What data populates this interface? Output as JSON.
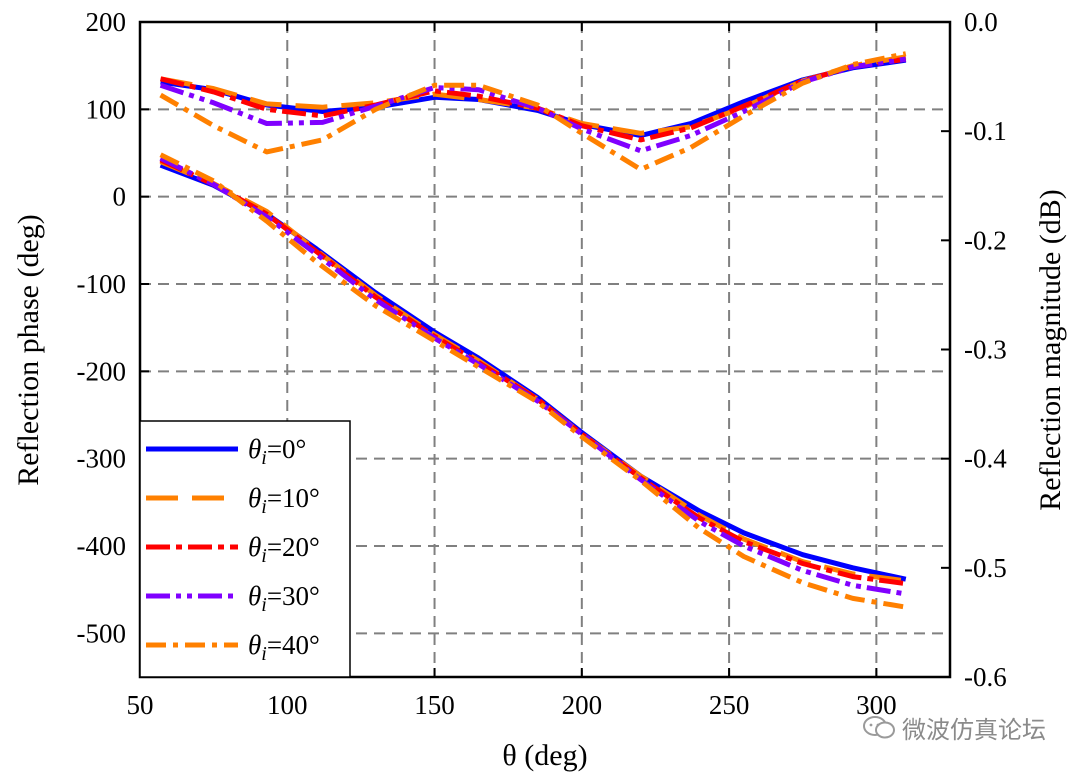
{
  "chart_data": {
    "type": "line",
    "xlabel": "θ (deg)",
    "ylabel_left": "Reflection phase (deg)",
    "ylabel_right": "Reflection magnitude (dB)",
    "xlim": [
      50,
      325
    ],
    "ylim_left": [
      -550,
      200
    ],
    "ylim_right": [
      -0.6,
      0.0
    ],
    "x_ticks": [
      50,
      100,
      150,
      200,
      250,
      300
    ],
    "y_ticks_left": [
      200,
      100,
      0,
      -100,
      -200,
      -300,
      -400,
      -500
    ],
    "y_ticks_right": [
      0.0,
      -0.1,
      -0.2,
      -0.3,
      -0.4,
      -0.5,
      -0.6
    ],
    "y_tick_labels_right": [
      "0.0",
      "-0.1",
      "-0.2",
      "-0.3",
      "-0.4",
      "-0.5",
      "-0.6"
    ],
    "grid": true,
    "legend_position": "bottom-left",
    "series": [
      {
        "name": "θi=0°",
        "name_pre": "θ",
        "name_sub": "i",
        "name_post": "=0°",
        "color": "#0000ff",
        "dash": "solid",
        "width": 5,
        "phase_x": [
          57,
          75,
          93,
          110,
          130,
          150,
          165,
          185,
          200,
          220,
          240,
          255,
          275,
          292,
          310
        ],
        "phase_y": [
          36,
          13,
          -20,
          -60,
          -110,
          -155,
          -185,
          -230,
          -270,
          -320,
          -360,
          -385,
          -410,
          -425,
          -438
        ],
        "mag_x": [
          57,
          75,
          93,
          112,
          130,
          150,
          165,
          185,
          200,
          220,
          237,
          255,
          275,
          292,
          310
        ],
        "mag_y": [
          -0.055,
          -0.062,
          -0.076,
          -0.082,
          -0.078,
          -0.069,
          -0.071,
          -0.081,
          -0.094,
          -0.104,
          -0.093,
          -0.073,
          -0.053,
          -0.042,
          -0.035
        ]
      },
      {
        "name": "θi=10°",
        "name_pre": "θ",
        "name_sub": "i",
        "name_post": "=10°",
        "color": "#ff8000",
        "dash": "32 14",
        "width": 5,
        "phase_x": [
          57,
          75,
          93,
          110,
          130,
          150,
          165,
          185,
          200,
          220,
          240,
          255,
          275,
          292,
          310
        ],
        "phase_y": [
          40,
          15,
          -17,
          -62,
          -113,
          -158,
          -188,
          -232,
          -272,
          -320,
          -365,
          -392,
          -418,
          -432,
          -440
        ],
        "mag_x": [
          57,
          75,
          93,
          112,
          130,
          150,
          165,
          185,
          200,
          220,
          237,
          255,
          275,
          292,
          310
        ],
        "mag_y": [
          -0.052,
          -0.061,
          -0.075,
          -0.078,
          -0.074,
          -0.066,
          -0.071,
          -0.079,
          -0.093,
          -0.102,
          -0.096,
          -0.078,
          -0.054,
          -0.04,
          -0.032
        ]
      },
      {
        "name": "θi=20°",
        "name_pre": "θ",
        "name_sub": "i",
        "name_post": "=20°",
        "color": "#ff0000",
        "dash": "24 6 6 6",
        "width": 5,
        "phase_x": [
          57,
          75,
          93,
          110,
          130,
          150,
          165,
          185,
          200,
          220,
          240,
          255,
          275,
          292,
          310
        ],
        "phase_y": [
          42,
          14,
          -20,
          -63,
          -115,
          -160,
          -190,
          -232,
          -272,
          -322,
          -368,
          -395,
          -420,
          -435,
          -443
        ],
        "mag_x": [
          57,
          75,
          93,
          112,
          130,
          150,
          165,
          185,
          200,
          220,
          237,
          255,
          275,
          292,
          310
        ],
        "mag_y": [
          -0.052,
          -0.064,
          -0.08,
          -0.086,
          -0.076,
          -0.063,
          -0.068,
          -0.079,
          -0.095,
          -0.108,
          -0.097,
          -0.077,
          -0.054,
          -0.041,
          -0.034
        ]
      },
      {
        "name": "θi=30°",
        "name_pre": "θ",
        "name_sub": "i",
        "name_post": "=30°",
        "color": "#8000ff",
        "dash": "24 6 5 6 5 6",
        "width": 5,
        "phase_x": [
          57,
          75,
          93,
          110,
          130,
          150,
          165,
          185,
          200,
          220,
          240,
          255,
          275,
          292,
          310
        ],
        "phase_y": [
          44,
          14,
          -23,
          -66,
          -118,
          -162,
          -192,
          -234,
          -272,
          -324,
          -372,
          -400,
          -428,
          -445,
          -455
        ],
        "mag_x": [
          57,
          75,
          93,
          112,
          130,
          150,
          165,
          185,
          200,
          220,
          237,
          255,
          275,
          292,
          310
        ],
        "mag_y": [
          -0.058,
          -0.074,
          -0.093,
          -0.092,
          -0.077,
          -0.06,
          -0.062,
          -0.079,
          -0.098,
          -0.118,
          -0.104,
          -0.082,
          -0.055,
          -0.041,
          -0.034
        ]
      },
      {
        "name": "θi=40°",
        "name_pre": "θ",
        "name_sub": "i",
        "name_post": "=40°",
        "color": "#ff8000",
        "dash": "20 7 5 7",
        "width": 5,
        "phase_x": [
          57,
          75,
          93,
          110,
          130,
          150,
          165,
          185,
          200,
          220,
          240,
          255,
          275,
          292,
          310
        ],
        "phase_y": [
          48,
          18,
          -28,
          -75,
          -125,
          -165,
          -195,
          -235,
          -275,
          -325,
          -380,
          -412,
          -442,
          -460,
          -470
        ],
        "mag_x": [
          57,
          75,
          93,
          112,
          130,
          150,
          165,
          185,
          200,
          220,
          237,
          255,
          275,
          292,
          310
        ],
        "mag_y": [
          -0.067,
          -0.095,
          -0.119,
          -0.108,
          -0.08,
          -0.058,
          -0.058,
          -0.076,
          -0.102,
          -0.135,
          -0.115,
          -0.086,
          -0.056,
          -0.039,
          -0.029
        ]
      }
    ]
  },
  "watermark": {
    "text": "微波仿真论坛",
    "icon": "chat-bubbles-icon"
  }
}
